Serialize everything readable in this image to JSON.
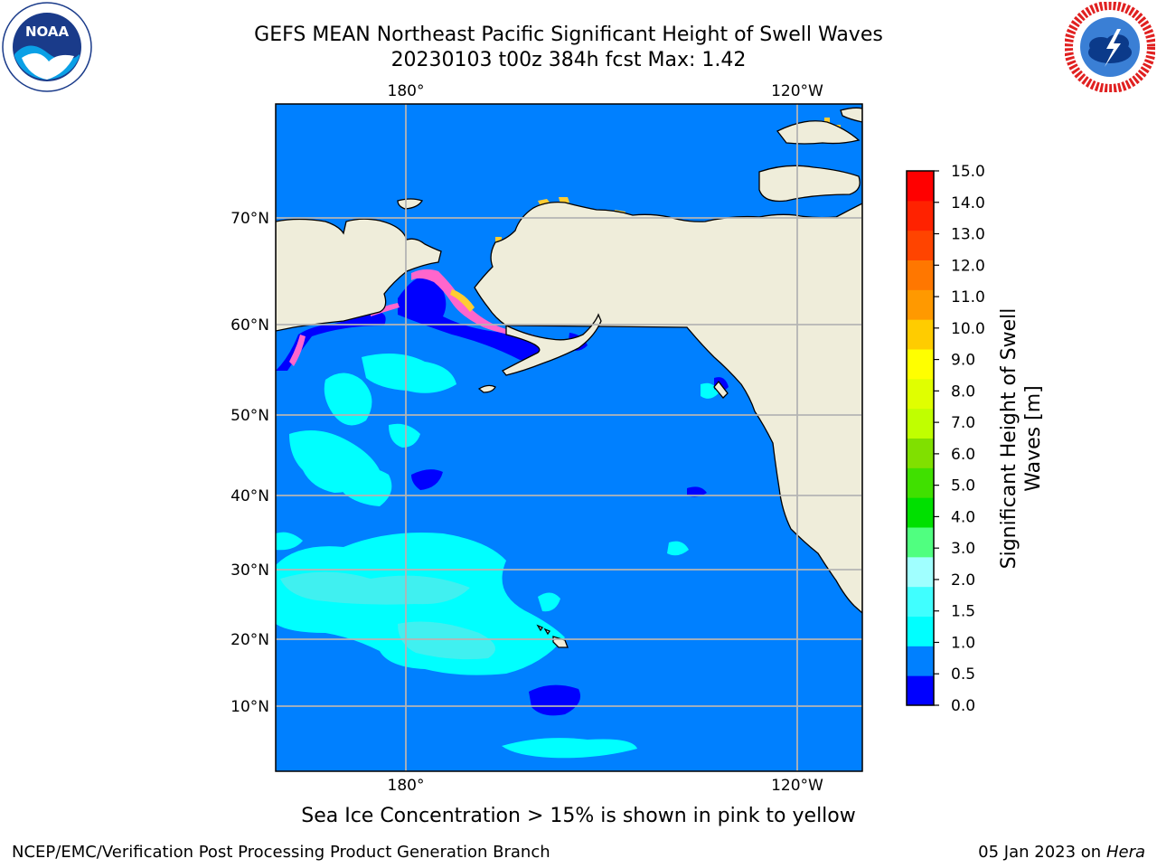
{
  "header": {
    "title_line1": "GEFS MEAN Northeast Pacific Significant Height of Swell Waves",
    "title_line2": "20230103 t00z 384h fcst   Max: 1.42"
  },
  "logos": {
    "left_icon": "noaa-logo",
    "left_text": "NOAA",
    "right_icon": "nws-logo"
  },
  "map": {
    "lon_labels": [
      "180°",
      "120°W"
    ],
    "lat_labels": [
      "70°N",
      "60°N",
      "50°N",
      "40°N",
      "30°N",
      "20°N",
      "10°N"
    ],
    "colors": {
      "ocean_base": "#0080ff",
      "low_swell": "#0000ff",
      "cyan_swell": "#00ffff",
      "light_cyan_swell": "#40f0f0",
      "land": "#efedda",
      "grid": "#b4b4b4",
      "ice_pink": "#ff66cc",
      "ice_yellow": "#ffcc33"
    }
  },
  "colorbar": {
    "label_line1": "Significant Height of Swell",
    "label_line2": "Waves [m]",
    "ticks": [
      "0.0",
      "0.5",
      "1.0",
      "1.5",
      "2.0",
      "3.0",
      "4.0",
      "5.0",
      "6.0",
      "7.0",
      "8.0",
      "9.0",
      "10.0",
      "11.0",
      "12.0",
      "13.0",
      "14.0",
      "15.0"
    ],
    "colors": [
      "#0000ff",
      "#0080ff",
      "#00ffff",
      "#40ffff",
      "#a0ffff",
      "#50ff80",
      "#00e000",
      "#40e000",
      "#80e000",
      "#c0ff00",
      "#e0ff00",
      "#ffff00",
      "#ffcc00",
      "#ff9900",
      "#ff7700",
      "#ff4400",
      "#ff2200",
      "#ff0000"
    ]
  },
  "notes": {
    "ice_note": "Sea Ice Concentration > 15% is shown in pink to yellow"
  },
  "footer": {
    "left": "NCEP/EMC/Verification Post Processing Product Generation Branch",
    "right_date": "05 Jan 2023 on ",
    "right_host": "Hera"
  }
}
